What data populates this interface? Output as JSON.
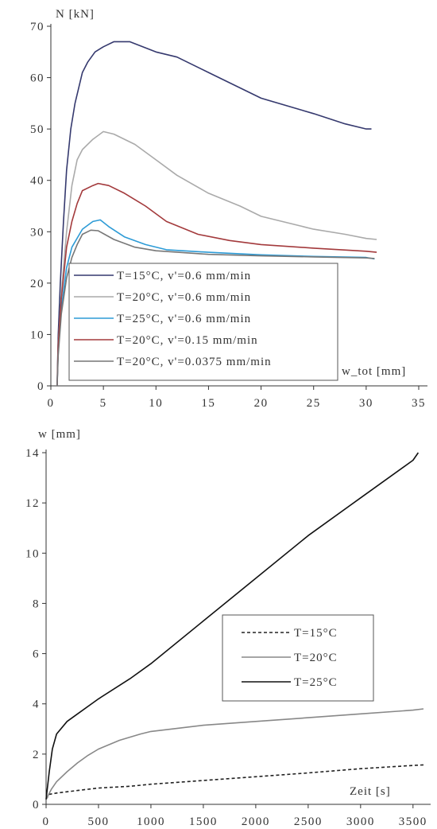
{
  "chart_data": [
    {
      "type": "line",
      "title": "",
      "ylabel": "N [kN]",
      "xlabel": "w_tot [mm]",
      "xlim": [
        0,
        35
      ],
      "ylim": [
        0,
        70
      ],
      "x_ticks": [
        "0",
        "5",
        "10",
        "15",
        "20",
        "25",
        "30",
        "35"
      ],
      "y_ticks": [
        "0",
        "10",
        "20",
        "30",
        "40",
        "50",
        "60",
        "70"
      ],
      "grid": false,
      "legend_position": "lower-left",
      "series": [
        {
          "name": "T=15°C, v'=0.6 mm/min",
          "color": "#35396e",
          "points": [
            [
              0.6,
              0
            ],
            [
              0.7,
              10
            ],
            [
              0.9,
              20
            ],
            [
              1.2,
              32
            ],
            [
              1.5,
              42
            ],
            [
              1.9,
              50
            ],
            [
              2.3,
              55
            ],
            [
              3,
              61
            ],
            [
              3.5,
              63
            ],
            [
              4.2,
              65
            ],
            [
              5,
              66
            ],
            [
              6,
              67
            ],
            [
              7.5,
              67
            ],
            [
              10,
              65
            ],
            [
              12,
              64
            ],
            [
              15,
              61
            ],
            [
              20,
              56
            ],
            [
              25,
              53
            ],
            [
              28,
              51
            ],
            [
              30,
              50
            ],
            [
              30.5,
              50
            ]
          ]
        },
        {
          "name": "T=20°C, v'=0.6 mm/min",
          "color": "#aaaaaa",
          "points": [
            [
              0.6,
              0
            ],
            [
              0.7,
              8
            ],
            [
              1,
              18
            ],
            [
              1.5,
              30
            ],
            [
              2,
              39
            ],
            [
              2.5,
              44
            ],
            [
              3,
              46
            ],
            [
              4,
              48
            ],
            [
              5,
              49.5
            ],
            [
              6,
              49
            ],
            [
              8,
              47
            ],
            [
              10,
              44
            ],
            [
              12,
              41
            ],
            [
              15,
              37.5
            ],
            [
              18,
              35
            ],
            [
              20,
              33
            ],
            [
              25,
              30.5
            ],
            [
              28,
              29.5
            ],
            [
              30,
              28.7
            ],
            [
              31,
              28.5
            ]
          ]
        },
        {
          "name": "T=25°C, v'=0.6 mm/min",
          "color": "#2d9bd6",
          "points": [
            [
              0.6,
              0
            ],
            [
              0.7,
              7
            ],
            [
              1,
              15
            ],
            [
              1.5,
              23
            ],
            [
              2,
              27
            ],
            [
              3,
              30.5
            ],
            [
              4,
              32
            ],
            [
              4.7,
              32.3
            ],
            [
              5.5,
              31
            ],
            [
              7,
              29
            ],
            [
              9,
              27.5
            ],
            [
              11,
              26.5
            ],
            [
              15,
              26
            ],
            [
              20,
              25.5
            ],
            [
              25,
              25.2
            ],
            [
              30,
              25
            ],
            [
              30.8,
              24.7
            ]
          ]
        },
        {
          "name": "T=20°C, v'=0.15 mm/min",
          "color": "#a33a3c",
          "points": [
            [
              0.6,
              0
            ],
            [
              0.7,
              8
            ],
            [
              1,
              17
            ],
            [
              1.5,
              27
            ],
            [
              2,
              32
            ],
            [
              2.5,
              35.5
            ],
            [
              3,
              38
            ],
            [
              4,
              39
            ],
            [
              4.5,
              39.4
            ],
            [
              5.5,
              39
            ],
            [
              7,
              37.5
            ],
            [
              9,
              35
            ],
            [
              11,
              32
            ],
            [
              14,
              29.5
            ],
            [
              17,
              28.3
            ],
            [
              20,
              27.5
            ],
            [
              25,
              26.8
            ],
            [
              30,
              26.2
            ],
            [
              31,
              26
            ]
          ]
        },
        {
          "name": "T=20°C, v'=0.0375 mm/min",
          "color": "#777777",
          "points": [
            [
              0.6,
              0
            ],
            [
              0.7,
              6
            ],
            [
              1,
              14
            ],
            [
              1.5,
              21
            ],
            [
              2,
              25
            ],
            [
              2.5,
              27.5
            ],
            [
              3,
              29.5
            ],
            [
              3.8,
              30.3
            ],
            [
              4.5,
              30.2
            ],
            [
              6,
              28.5
            ],
            [
              8,
              27
            ],
            [
              10,
              26.3
            ],
            [
              15,
              25.6
            ],
            [
              20,
              25.3
            ],
            [
              25,
              25.1
            ],
            [
              30,
              24.9
            ],
            [
              30.8,
              24.8
            ]
          ]
        }
      ]
    },
    {
      "type": "line",
      "title": "",
      "ylabel": "w [mm]",
      "xlabel": "Zeit [s]",
      "xlim": [
        0,
        3600
      ],
      "ylim": [
        0,
        14
      ],
      "x_ticks": [
        "0",
        "500",
        "1000",
        "1500",
        "2000",
        "2500",
        "3000",
        "3500"
      ],
      "y_ticks": [
        "0",
        "2",
        "4",
        "6",
        "8",
        "10",
        "12",
        "14"
      ],
      "grid": false,
      "legend_position": "right",
      "series": [
        {
          "name": "T=15°C",
          "color": "#222222",
          "dash": "dashed",
          "points": [
            [
              0,
              0.2
            ],
            [
              30,
              0.4
            ],
            [
              100,
              0.45
            ],
            [
              300,
              0.55
            ],
            [
              500,
              0.65
            ],
            [
              800,
              0.72
            ],
            [
              1000,
              0.8
            ],
            [
              1500,
              0.95
            ],
            [
              2000,
              1.1
            ],
            [
              2500,
              1.25
            ],
            [
              3000,
              1.42
            ],
            [
              3500,
              1.55
            ],
            [
              3600,
              1.57
            ]
          ]
        },
        {
          "name": "T=20°C",
          "color": "#888888",
          "dash": "solid",
          "points": [
            [
              0,
              0.2
            ],
            [
              50,
              0.6
            ],
            [
              100,
              0.9
            ],
            [
              200,
              1.3
            ],
            [
              300,
              1.65
            ],
            [
              400,
              1.95
            ],
            [
              500,
              2.2
            ],
            [
              700,
              2.55
            ],
            [
              900,
              2.8
            ],
            [
              1000,
              2.9
            ],
            [
              1200,
              3.0
            ],
            [
              1500,
              3.15
            ],
            [
              2000,
              3.3
            ],
            [
              2500,
              3.45
            ],
            [
              3000,
              3.6
            ],
            [
              3500,
              3.75
            ],
            [
              3600,
              3.8
            ]
          ]
        },
        {
          "name": "T=25°C",
          "color": "#111111",
          "dash": "solid",
          "points": [
            [
              0,
              0.2
            ],
            [
              30,
              1.3
            ],
            [
              60,
              2.2
            ],
            [
              100,
              2.8
            ],
            [
              200,
              3.3
            ],
            [
              300,
              3.6
            ],
            [
              500,
              4.2
            ],
            [
              800,
              5.0
            ],
            [
              1000,
              5.6
            ],
            [
              1500,
              7.3
            ],
            [
              2000,
              9.0
            ],
            [
              2500,
              10.7
            ],
            [
              3000,
              12.2
            ],
            [
              3500,
              13.7
            ],
            [
              3550,
              14.0
            ]
          ]
        }
      ]
    }
  ]
}
